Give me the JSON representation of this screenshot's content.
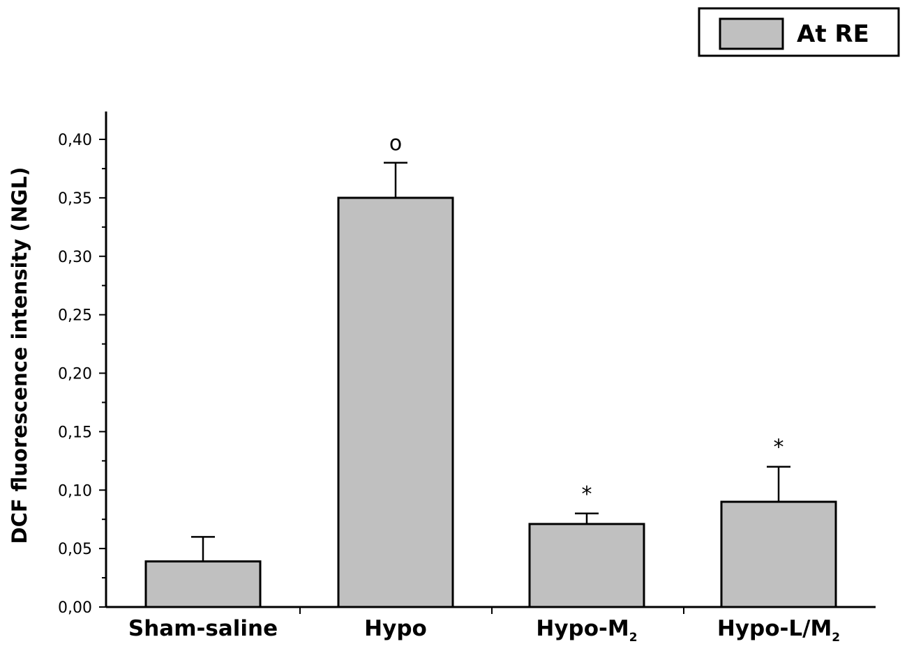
{
  "chart_data": {
    "type": "bar",
    "ylabel": "DCF fluorescence intensity (NGL)",
    "ylim": [
      0,
      0.42
    ],
    "yticks": [
      "0,00",
      "0,05",
      "0,10",
      "0,15",
      "0,20",
      "0,25",
      "0,30",
      "0,35",
      "0,40"
    ],
    "ytick_values": [
      0,
      0.05,
      0.1,
      0.15,
      0.2,
      0.25,
      0.3,
      0.35,
      0.4
    ],
    "categories": [
      {
        "main": "Sham-saline",
        "sub": ""
      },
      {
        "main": "Hypo",
        "sub": ""
      },
      {
        "main": "Hypo-M",
        "sub": "2"
      },
      {
        "main": "Hypo-L/M",
        "sub": "2"
      }
    ],
    "series": [
      {
        "name": "At RE",
        "color": "#c0c0c0",
        "values": [
          0.039,
          0.35,
          0.071,
          0.09
        ],
        "errors": [
          0.021,
          0.03,
          0.009,
          0.03
        ]
      }
    ],
    "annotations": [
      "",
      "o",
      "*",
      "*"
    ],
    "legend_position": "top-right",
    "grid": false
  }
}
